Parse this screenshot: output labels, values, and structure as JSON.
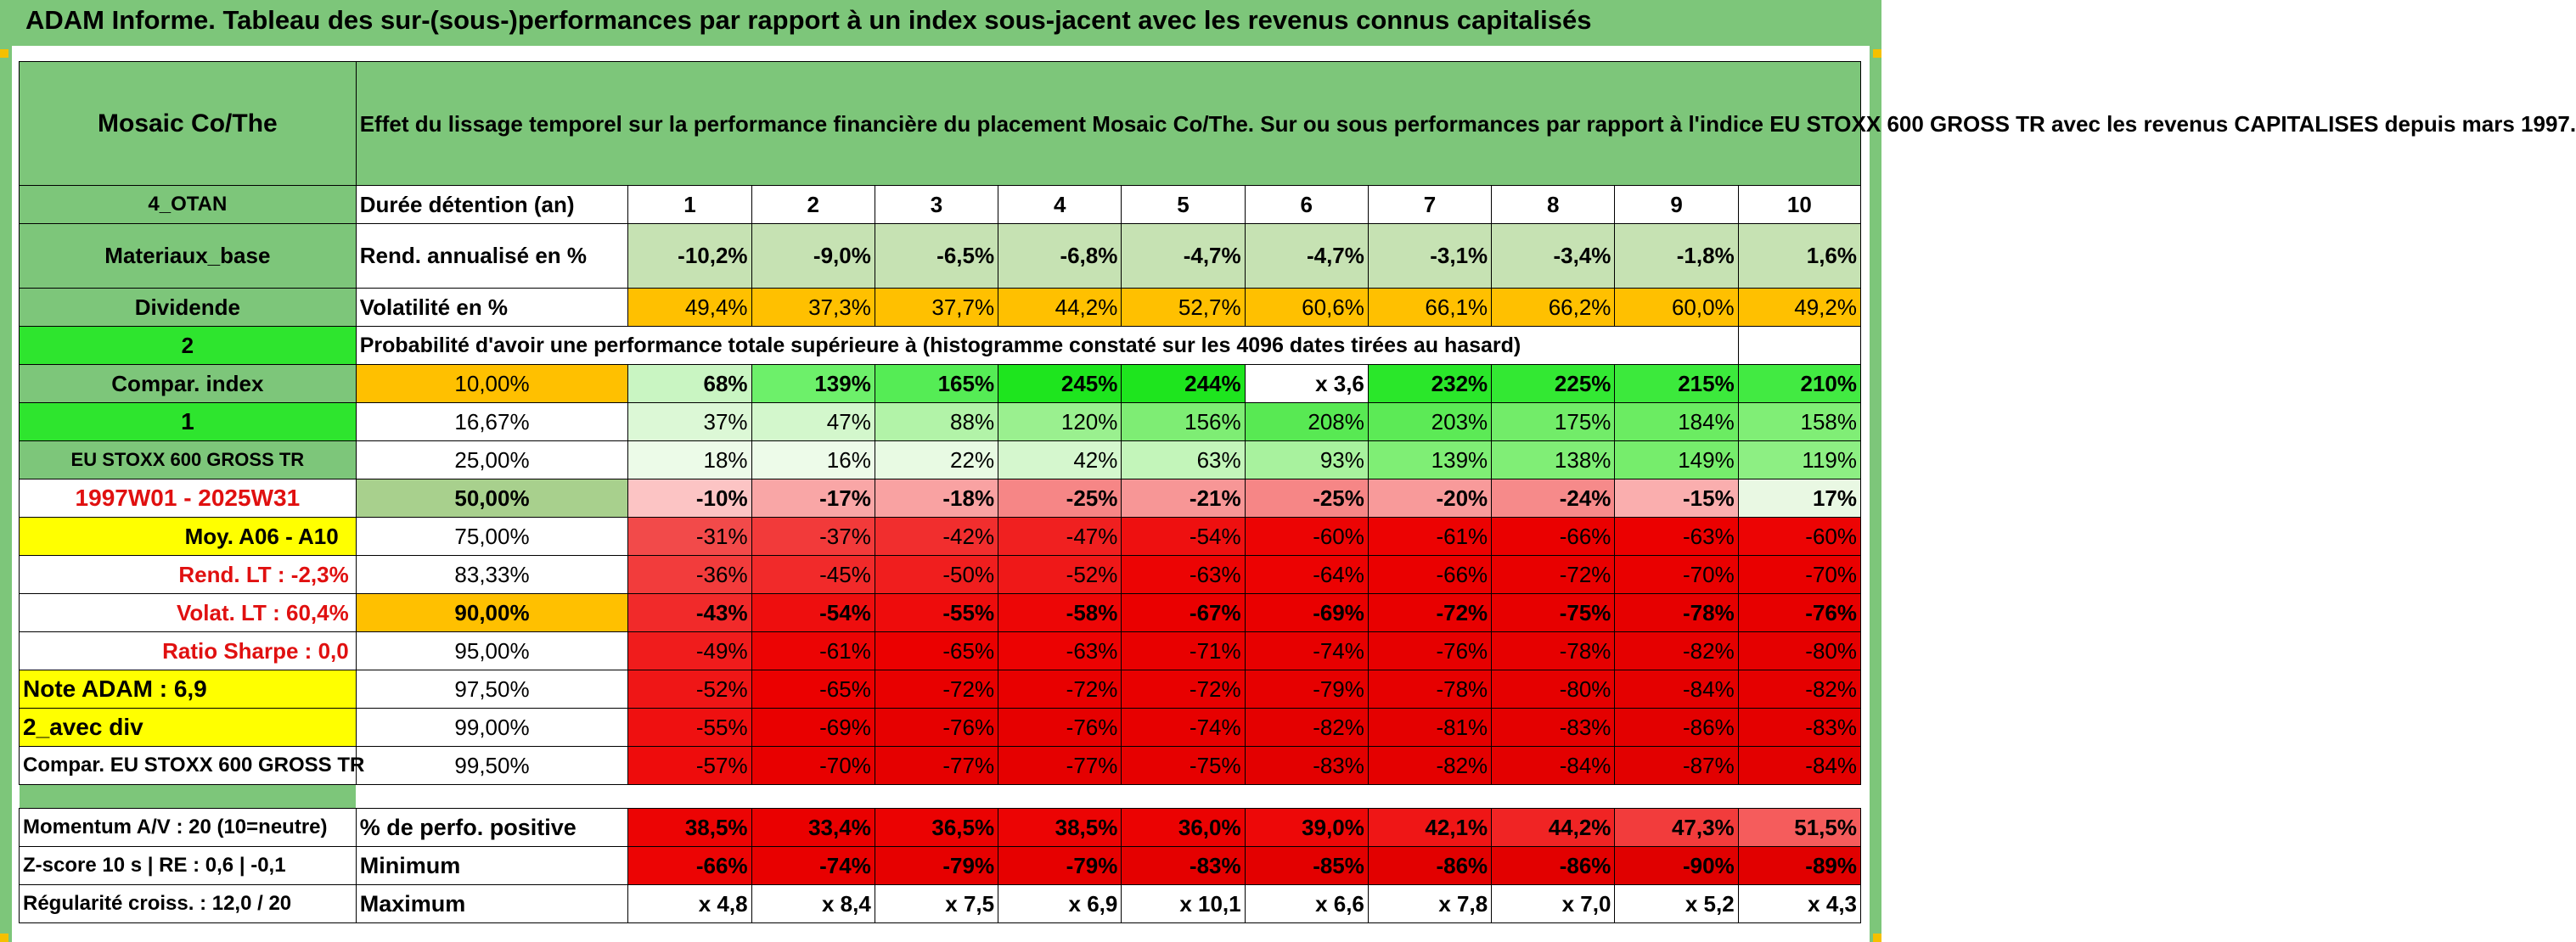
{
  "window_title": "ADAM Informe. Tableau des sur-(sous-)performances par rapport à un index sous-jacent avec les revenus connus capitalisés",
  "colors": {
    "header_green": "#7dc67a",
    "bright_green": "#2ee52e",
    "yellow": "#ffff00",
    "gold": "#ffc000",
    "red": "#ff0000",
    "light_green": "#c6e2b3"
  },
  "sidebar": {
    "fund_name": "Mosaic Co/The",
    "code": "4_OTAN",
    "sector": "Materiaux_base",
    "dividend_label": "Dividende",
    "dividend_value": "2",
    "compar_index_label": "Compar. index",
    "compar_index_value": "1",
    "index_name": "EU STOXX 600 GROSS TR",
    "period": "1997W01 - 2025W31",
    "moy": "Moy. A06 - A10",
    "rend_lt": "Rend. LT :   -2,3%",
    "volat_lt": "Volat. LT :   60,4%",
    "sharpe": "Ratio Sharpe :    0,0",
    "note": "Note ADAM : 6,9",
    "avec_div": "2_avec div",
    "compar_full": "Compar. EU STOXX 600 GROSS TR",
    "momentum": "Momentum A/V : 20 (10=neutre)",
    "zscore": "Z-score 10 s | RE : 0,6 | -0,1",
    "regularite": "Régularité croiss. : 12,0 / 20"
  },
  "main": {
    "header": "Effet du lissage temporel sur la performance financière du placement Mosaic Co/The. Sur ou sous performances par rapport à l'indice EU STOXX 600 GROSS TR avec les revenus CAPITALISES depuis mars 1997.",
    "duree_label": "Durée détention (an)",
    "years": [
      "1",
      "2",
      "3",
      "4",
      "5",
      "6",
      "7",
      "8",
      "9",
      "10"
    ],
    "rend_label": "Rend. annualisé en %",
    "rend": [
      "-10,2%",
      "-9,0%",
      "-6,5%",
      "-6,8%",
      "-4,7%",
      "-4,7%",
      "-3,1%",
      "-3,4%",
      "-1,8%",
      "1,6%"
    ],
    "vol_label": "Volatilité en %",
    "vol": [
      "49,4%",
      "37,3%",
      "37,7%",
      "44,2%",
      "52,7%",
      "60,6%",
      "66,1%",
      "66,2%",
      "60,0%",
      "49,2%"
    ],
    "prob_label": "Probabilité d'avoir une performance totale supérieure à (histogramme constaté sur les 4096 dates tirées au hasard)",
    "quantiles": [
      {
        "p": "10,00%",
        "v": [
          "68%",
          "139%",
          "165%",
          "245%",
          "244%",
          "x 3,6",
          "232%",
          "225%",
          "215%",
          "210%"
        ]
      },
      {
        "p": "16,67%",
        "v": [
          "37%",
          "47%",
          "88%",
          "120%",
          "156%",
          "208%",
          "203%",
          "175%",
          "184%",
          "158%"
        ]
      },
      {
        "p": "25,00%",
        "v": [
          "18%",
          "16%",
          "22%",
          "42%",
          "63%",
          "93%",
          "139%",
          "138%",
          "149%",
          "119%"
        ]
      },
      {
        "p": "50,00%",
        "v": [
          "-10%",
          "-17%",
          "-18%",
          "-25%",
          "-21%",
          "-25%",
          "-20%",
          "-24%",
          "-15%",
          "17%"
        ]
      },
      {
        "p": "75,00%",
        "v": [
          "-31%",
          "-37%",
          "-42%",
          "-47%",
          "-54%",
          "-60%",
          "-61%",
          "-66%",
          "-63%",
          "-60%"
        ]
      },
      {
        "p": "83,33%",
        "v": [
          "-36%",
          "-45%",
          "-50%",
          "-52%",
          "-63%",
          "-64%",
          "-66%",
          "-72%",
          "-70%",
          "-70%"
        ]
      },
      {
        "p": "90,00%",
        "v": [
          "-43%",
          "-54%",
          "-55%",
          "-58%",
          "-67%",
          "-69%",
          "-72%",
          "-75%",
          "-78%",
          "-76%"
        ]
      },
      {
        "p": "95,00%",
        "v": [
          "-49%",
          "-61%",
          "-65%",
          "-63%",
          "-71%",
          "-74%",
          "-76%",
          "-78%",
          "-82%",
          "-80%"
        ]
      },
      {
        "p": "97,50%",
        "v": [
          "-52%",
          "-65%",
          "-72%",
          "-72%",
          "-72%",
          "-79%",
          "-78%",
          "-80%",
          "-84%",
          "-82%"
        ]
      },
      {
        "p": "99,00%",
        "v": [
          "-55%",
          "-69%",
          "-76%",
          "-76%",
          "-74%",
          "-82%",
          "-81%",
          "-83%",
          "-86%",
          "-83%"
        ]
      },
      {
        "p": "99,50%",
        "v": [
          "-57%",
          "-70%",
          "-77%",
          "-77%",
          "-75%",
          "-83%",
          "-82%",
          "-84%",
          "-87%",
          "-84%"
        ]
      }
    ],
    "pos_label": "% de perfo. positive",
    "pos": [
      "38,5%",
      "33,4%",
      "36,5%",
      "38,5%",
      "36,0%",
      "39,0%",
      "42,1%",
      "44,2%",
      "47,3%",
      "51,5%"
    ],
    "min_label": "Minimum",
    "min": [
      "-66%",
      "-74%",
      "-79%",
      "-79%",
      "-83%",
      "-85%",
      "-86%",
      "-86%",
      "-90%",
      "-89%"
    ],
    "max_label": "Maximum",
    "max": [
      "x 4,8",
      "x 8,4",
      "x 7,5",
      "x 6,9",
      "x 10,1",
      "x 6,6",
      "x 7,8",
      "x 7,0",
      "x 5,2",
      "x 4,3"
    ]
  }
}
